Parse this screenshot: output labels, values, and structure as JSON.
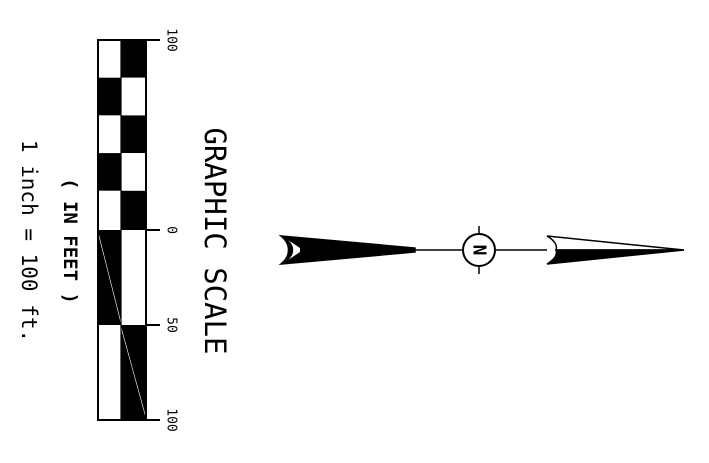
{
  "scale": {
    "title": "GRAPHIC SCALE",
    "units": "( IN FEET )",
    "ratio": "1 inch = 100 ft.",
    "tick_labels": [
      "100",
      "0",
      "50",
      "100"
    ],
    "colors": {
      "ink": "#000000",
      "paper": "#ffffff"
    }
  },
  "north_arrow": {
    "symbol": "N",
    "icon": "north-arrow-icon",
    "color": "#000000"
  }
}
